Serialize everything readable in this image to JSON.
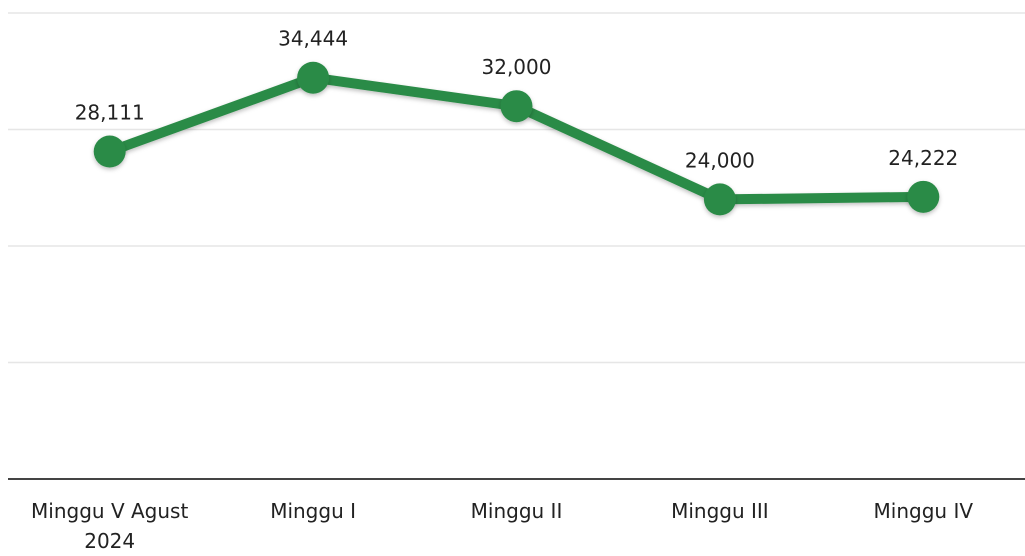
{
  "chart_data": {
    "type": "line",
    "categories": [
      "Minggu V Agust 2024",
      "Minggu I",
      "Minggu II",
      "Minggu III",
      "Minggu IV"
    ],
    "series": [
      {
        "name": null,
        "color": "#2b8b47",
        "values": [
          28111,
          34444,
          32000,
          24000,
          24222
        ],
        "value_labels": [
          "28,111",
          "34,444",
          "32,000",
          "24,000",
          "24,222"
        ]
      }
    ],
    "ylim": [
      0,
      40000
    ],
    "yticks": [
      0,
      10000,
      20000,
      30000,
      40000
    ],
    "grid": true
  }
}
